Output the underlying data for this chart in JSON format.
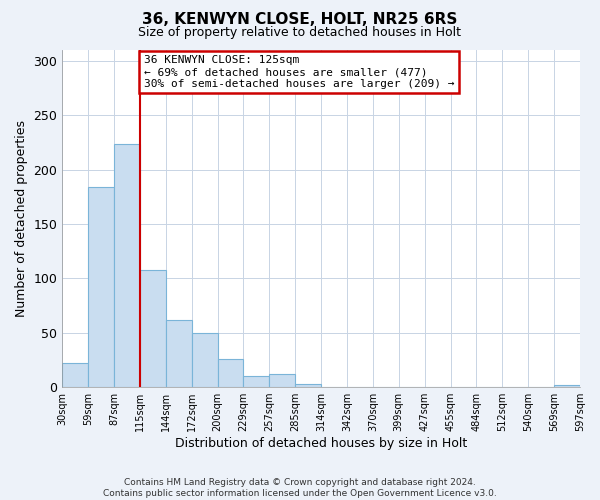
{
  "title": "36, KENWYN CLOSE, HOLT, NR25 6RS",
  "subtitle": "Size of property relative to detached houses in Holt",
  "xlabel": "Distribution of detached houses by size in Holt",
  "ylabel": "Number of detached properties",
  "bar_values": [
    22,
    184,
    224,
    108,
    62,
    50,
    26,
    10,
    12,
    3,
    0,
    0,
    0,
    0,
    0,
    0,
    0,
    0,
    0,
    2
  ],
  "bin_labels": [
    "30sqm",
    "59sqm",
    "87sqm",
    "115sqm",
    "144sqm",
    "172sqm",
    "200sqm",
    "229sqm",
    "257sqm",
    "285sqm",
    "314sqm",
    "342sqm",
    "370sqm",
    "399sqm",
    "427sqm",
    "455sqm",
    "484sqm",
    "512sqm",
    "540sqm",
    "569sqm",
    "597sqm"
  ],
  "bar_color": "#c9ddf0",
  "bar_edge_color": "#7ab4d8",
  "annotation_line1": "36 KENWYN CLOSE: 125sqm",
  "annotation_line2": "← 69% of detached houses are smaller (477)",
  "annotation_line3": "30% of semi-detached houses are larger (209) →",
  "annotation_box_color": "white",
  "annotation_box_edge_color": "#cc0000",
  "line_color": "#cc0000",
  "property_line_bin_index": 3,
  "ylim": [
    0,
    310
  ],
  "yticks": [
    0,
    50,
    100,
    150,
    200,
    250,
    300
  ],
  "footer_line1": "Contains HM Land Registry data © Crown copyright and database right 2024.",
  "footer_line2": "Contains public sector information licensed under the Open Government Licence v3.0.",
  "bg_color": "#edf2f9",
  "plot_bg_color": "white",
  "grid_color": "#c8d4e4"
}
